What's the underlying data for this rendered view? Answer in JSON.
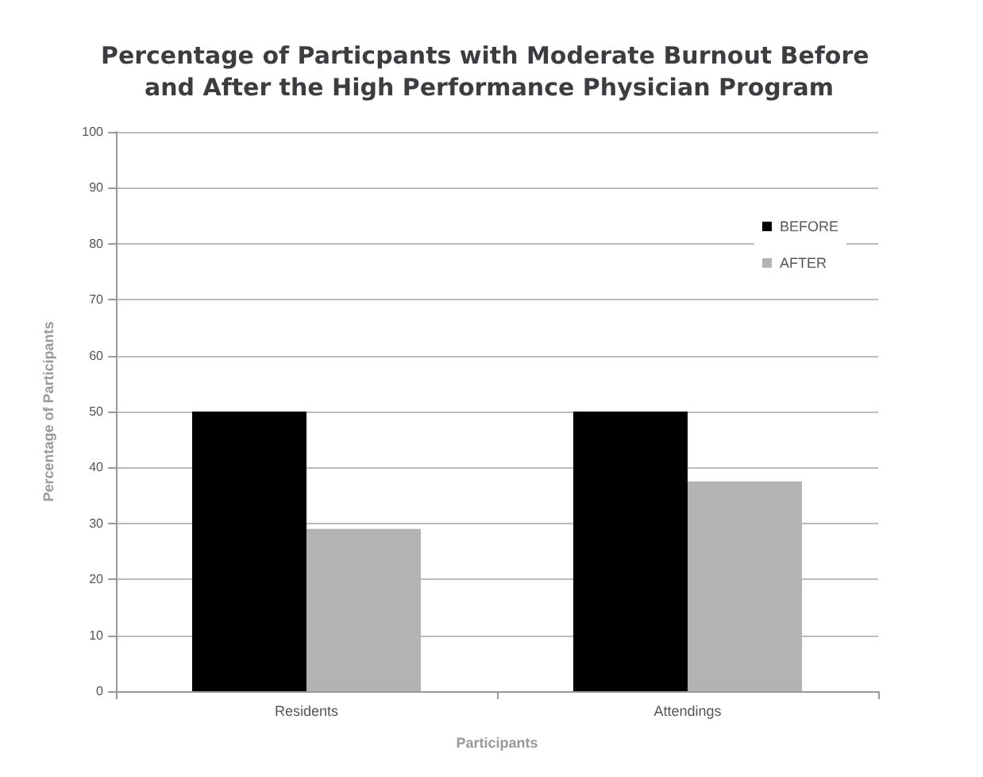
{
  "chart_data": {
    "type": "bar",
    "title": "Percentage of Particpants with Moderate Burnout Before and After the High Performance Physician Program",
    "xlabel": "Participants",
    "ylabel": "Percentage of Participants",
    "categories": [
      "Residents",
      "Attendings"
    ],
    "series": [
      {
        "name": "BEFORE",
        "color": "#000000",
        "values": [
          50,
          50
        ]
      },
      {
        "name": "AFTER",
        "color": "#b3b3b3",
        "values": [
          29,
          37.5
        ]
      }
    ],
    "ylim": [
      0,
      100
    ],
    "yticks": [
      0,
      10,
      20,
      30,
      40,
      50,
      60,
      70,
      80,
      90,
      100
    ],
    "grid": "y",
    "legend": "top right"
  }
}
